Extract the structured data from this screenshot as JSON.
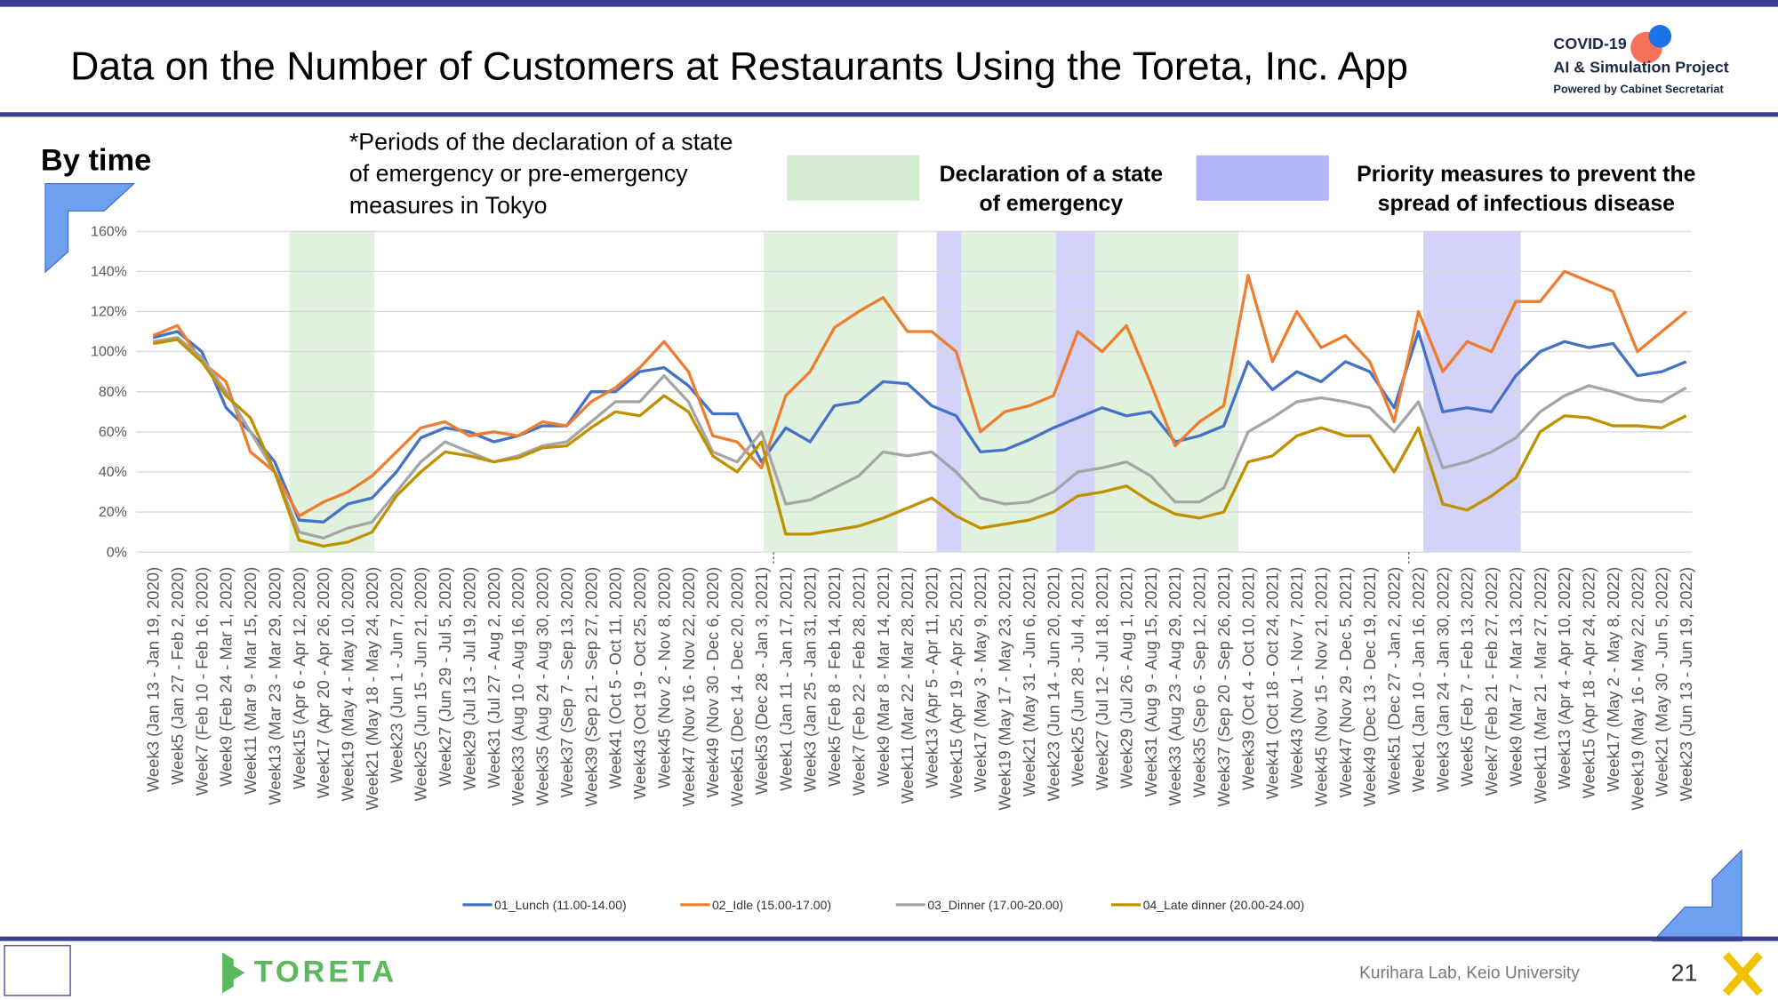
{
  "header": {
    "title": "Data on the Number of Customers at Restaurants Using the Toreta, Inc. App",
    "logo": [
      "COVID-19",
      "AI & Simulation Project",
      "Powered by Cabinet Secretariat"
    ]
  },
  "section": "By time",
  "note": [
    "*Periods of the declaration of a state",
    "of emergency or pre-emergency",
    "measures in Tokyo"
  ],
  "key": [
    {
      "label": [
        "Declaration of a state",
        "of emergency"
      ],
      "color": "#d3ecd0"
    },
    {
      "label": [
        "Priority measures to prevent the",
        "spread of infectious disease"
      ],
      "color": "#b4b4f8"
    }
  ],
  "chart_data": {
    "type": "line",
    "categories": [
      "Week3 (Jan 13 - Jan 19, 2020)",
      "Week5 (Jan 27 - Feb 2, 2020)",
      "Week7 (Feb 10 - Feb 16, 2020)",
      "Week9 (Feb 24 - Mar 1, 2020)",
      "Week11 (Mar 9 - Mar 15, 2020)",
      "Week13 (Mar 23 - Mar 29, 2020)",
      "Week15 (Apr 6 - Apr 12, 2020)",
      "Week17 (Apr 20 - Apr 26, 2020)",
      "Week19 (May 4 - May 10, 2020)",
      "Week21 (May 18 - May 24, 2020)",
      "Week23 (Jun 1 - Jun 7, 2020)",
      "Week25 (Jun 15 - Jun 21, 2020)",
      "Week27 (Jun 29 - Jul 5, 2020)",
      "Week29 (Jul 13 - Jul 19, 2020)",
      "Week31 (Jul 27 - Aug 2, 2020)",
      "Week33 (Aug 10 - Aug 16, 2020)",
      "Week35 (Aug 24 - Aug 30, 2020)",
      "Week37 (Sep 7 - Sep 13, 2020)",
      "Week39 (Sep 21 - Sep 27, 2020)",
      "Week41 (Oct 5 - Oct 11, 2020)",
      "Week43 (Oct 19 - Oct 25, 2020)",
      "Week45 (Nov 2 - Nov 8, 2020)",
      "Week47 (Nov 16 - Nov 22, 2020)",
      "Week49 (Nov 30 - Dec 6, 2020)",
      "Week51 (Dec 14 - Dec 20, 2020)",
      "Week53 (Dec 28 - Jan 3, 2021)",
      "Week1 (Jan 11 - Jan 17, 2021)",
      "Week3 (Jan 25 - Jan 31, 2021)",
      "Week5 (Feb 8 - Feb 14, 2021)",
      "Week7 (Feb 22 - Feb 28, 2021)",
      "Week9 (Mar 8 - Mar 14, 2021)",
      "Week11 (Mar 22 - Mar 28, 2021)",
      "Week13 (Apr 5 - Apr 11, 2021)",
      "Week15 (Apr 19 - Apr 25, 2021)",
      "Week17 (May 3 - May 9, 2021)",
      "Week19 (May 17 - May 23, 2021)",
      "Week21 (May 31 - Jun 6, 2021)",
      "Week23 (Jun 14 - Jun 20, 2021)",
      "Week25 (Jun 28 - Jul 4, 2021)",
      "Week27 (Jul 12 - Jul 18, 2021)",
      "Week29 (Jul 26 - Aug 1, 2021)",
      "Week31 (Aug 9 - Aug 15, 2021)",
      "Week33 (Aug 23 - Aug 29, 2021)",
      "Week35 (Sep 6 - Sep 12, 2021)",
      "Week37 (Sep 20 - Sep 26, 2021)",
      "Week39 (Oct 4 - Oct 10, 2021)",
      "Week41 (Oct 18 - Oct 24, 2021)",
      "Week43 (Nov 1 - Nov 7, 2021)",
      "Week45 (Nov 15 - Nov 21, 2021)",
      "Week47 (Nov 29 - Dec 5, 2021)",
      "Week49 (Dec 13 - Dec 19, 2021)",
      "Week51 (Dec 27 - Jan 2, 2022)",
      "Week1 (Jan 10 - Jan 16, 2022)",
      "Week3 (Jan 24 - Jan 30, 2022)",
      "Week5 (Feb 7 - Feb 13, 2022)",
      "Week7 (Feb 21 - Feb 27, 2022)",
      "Week9 (Mar 7 - Mar 13, 2022)",
      "Week11 (Mar 21 - Mar 27, 2022)",
      "Week13 (Apr 4 - Apr 10, 2022)",
      "Week15 (Apr 18 - Apr 24, 2022)",
      "Week17 (May 2 - May 8, 2022)",
      "Week19 (May 16 - May 22, 2022)",
      "Week21 (May 30 - Jun 5, 2022)",
      "Week23 (Jun 13 - Jun 19, 2022)"
    ],
    "series": [
      {
        "name": "01_Lunch (11.00-14.00)",
        "color": "#4472c4",
        "values": [
          107,
          110,
          100,
          72,
          60,
          45,
          16,
          15,
          24,
          27,
          40,
          57,
          62,
          60,
          55,
          58,
          63,
          63,
          80,
          80,
          90,
          92,
          83,
          69,
          69,
          45,
          62,
          55,
          73,
          75,
          85,
          84,
          73,
          68,
          50,
          51,
          56,
          62,
          67,
          72,
          68,
          70,
          55,
          58,
          63,
          95,
          81,
          90,
          85,
          95,
          90,
          72,
          110,
          70,
          72,
          70,
          88,
          100,
          105,
          102,
          104,
          88,
          90,
          95
        ]
      },
      {
        "name": "02_Idle (15.00-17.00)",
        "color": "#ed7d31",
        "values": [
          108,
          113,
          95,
          85,
          50,
          40,
          18,
          25,
          30,
          38,
          50,
          62,
          65,
          58,
          60,
          58,
          65,
          63,
          75,
          82,
          92,
          105,
          90,
          58,
          55,
          42,
          78,
          90,
          112,
          120,
          127,
          110,
          110,
          100,
          60,
          70,
          73,
          78,
          110,
          100,
          113,
          84,
          53,
          65,
          73,
          138,
          95,
          120,
          102,
          108,
          95,
          65,
          120,
          90,
          105,
          100,
          125,
          125,
          140,
          135,
          130,
          100,
          110,
          120
        ]
      },
      {
        "name": "03_Dinner (17.00-20.00)",
        "color": "#a5a5a5",
        "values": [
          105,
          107,
          97,
          80,
          60,
          40,
          10,
          7,
          12,
          15,
          30,
          45,
          55,
          50,
          45,
          48,
          53,
          55,
          65,
          75,
          75,
          88,
          75,
          50,
          45,
          60,
          24,
          26,
          32,
          38,
          50,
          48,
          50,
          40,
          27,
          24,
          25,
          30,
          40,
          42,
          45,
          38,
          25,
          25,
          32,
          60,
          67,
          75,
          77,
          75,
          72,
          60,
          75,
          42,
          45,
          50,
          57,
          70,
          78,
          83,
          80,
          76,
          75,
          82
        ]
      },
      {
        "name": "04_Late dinner (20.00-24.00)",
        "color": "#bf9000",
        "values": [
          104,
          106,
          95,
          78,
          67,
          40,
          6,
          3,
          5,
          10,
          28,
          40,
          50,
          48,
          45,
          47,
          52,
          53,
          62,
          70,
          68,
          78,
          70,
          48,
          40,
          55,
          9,
          9,
          11,
          13,
          17,
          22,
          27,
          18,
          12,
          14,
          16,
          20,
          28,
          30,
          33,
          25,
          19,
          17,
          20,
          45,
          48,
          58,
          62,
          58,
          58,
          40,
          62,
          24,
          21,
          28,
          37,
          60,
          68,
          67,
          63,
          63,
          62,
          68
        ]
      }
    ],
    "ylim": [
      0,
      160
    ],
    "yticks": [
      {
        "value": 0,
        "label": "0%"
      },
      {
        "value": 20,
        "label": "20%"
      },
      {
        "value": 40,
        "label": "40%"
      },
      {
        "value": 60,
        "label": "60%"
      },
      {
        "value": 80,
        "label": "80%"
      },
      {
        "value": 100,
        "label": "100%"
      },
      {
        "value": 120,
        "label": "120%"
      },
      {
        "value": 140,
        "label": "140%"
      },
      {
        "value": 160,
        "label": "160%"
      }
    ],
    "grid": true
  },
  "footer": {
    "brand": "TORETA",
    "credit": "Kurihara Lab, Keio University",
    "page": "21"
  }
}
